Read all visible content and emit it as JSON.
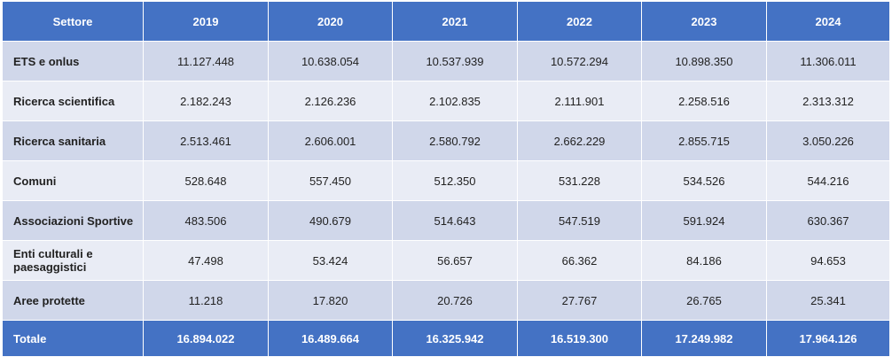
{
  "table": {
    "header": [
      "Settore",
      "2019",
      "2020",
      "2021",
      "2022",
      "2023",
      "2024"
    ],
    "rows": [
      {
        "sector": "ETS  e onlus",
        "values": [
          "11.127.448",
          "10.638.054",
          "10.537.939",
          "10.572.294",
          "10.898.350",
          "11.306.011"
        ]
      },
      {
        "sector": "Ricerca scientifica",
        "values": [
          "2.182.243",
          "2.126.236",
          "2.102.835",
          "2.111.901",
          "2.258.516",
          "2.313.312"
        ]
      },
      {
        "sector": "Ricerca sanitaria",
        "values": [
          "2.513.461",
          "2.606.001",
          "2.580.792",
          "2.662.229",
          "2.855.715",
          "3.050.226"
        ]
      },
      {
        "sector": "Comuni",
        "values": [
          "528.648",
          "557.450",
          "512.350",
          "531.228",
          "534.526",
          "544.216"
        ]
      },
      {
        "sector": "Associazioni Sportive",
        "values": [
          "483.506",
          "490.679",
          "514.643",
          "547.519",
          "591.924",
          "630.367"
        ]
      },
      {
        "sector": "Enti culturali e paesaggistici",
        "values": [
          "47.498",
          "53.424",
          "56.657",
          "66.362",
          "84.186",
          "94.653"
        ]
      },
      {
        "sector": "Aree protette",
        "values": [
          "11.218",
          "17.820",
          "20.726",
          "27.767",
          "26.765",
          "25.341"
        ]
      }
    ],
    "total": {
      "sector": "Totale",
      "values": [
        "16.894.022",
        "16.489.664",
        "16.325.942",
        "16.519.300",
        "17.249.982",
        "17.964.126"
      ]
    }
  }
}
